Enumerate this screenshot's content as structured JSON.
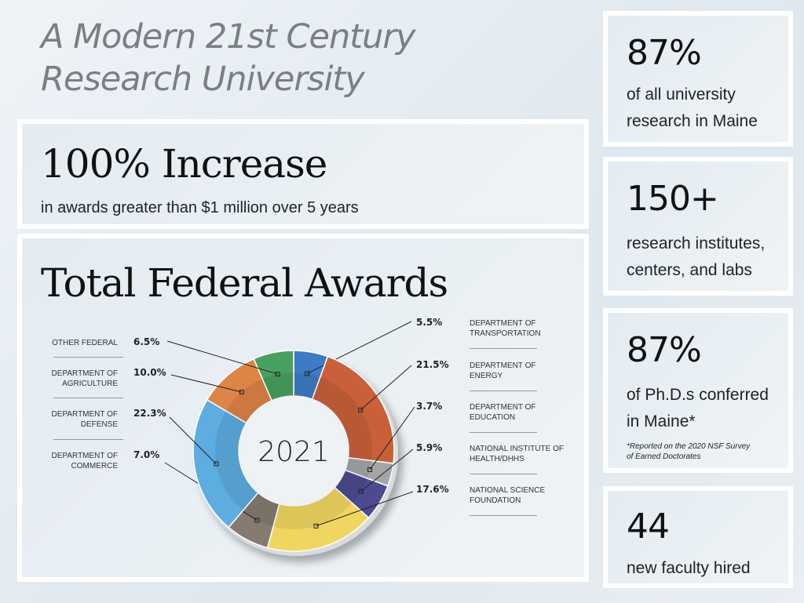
{
  "header": {
    "title_line1": "A Modern 21st Century",
    "title_line2": "Research University"
  },
  "increase": {
    "headline": "100% Increase",
    "detail": "in awards greater than $1 million over 5 years"
  },
  "stats": [
    {
      "value": "87%",
      "line1": "of all university",
      "line2": "research in Maine"
    },
    {
      "value": "150+",
      "line1": "research institutes,",
      "line2": "centers, and labs"
    },
    {
      "value": "87%",
      "line1": "of Ph.D.s conferred",
      "line2": "in Maine*",
      "footnote1": "*Reported on the 2020 NSF Survey",
      "footnote2": "of Earned Doctorates"
    },
    {
      "value": "44",
      "line1": "new faculty hired"
    }
  ],
  "chart_data": {
    "type": "pie",
    "style": "donut",
    "title": "Total Federal Awards",
    "center_label": "2021",
    "slices": [
      {
        "name": "DEPARTMENT OF TRANSPORTATION",
        "value": 5.5,
        "label": "5.5%",
        "color": "#3d7cc4"
      },
      {
        "name": "DEPARTMENT OF ENERGY",
        "value": 21.5,
        "label": "21.5%",
        "color": "#c9603a"
      },
      {
        "name": "DEPARTMENT OF EDUCATION",
        "value": 3.7,
        "label": "3.7%",
        "color": "#a3a5a7"
      },
      {
        "name": "NATIONAL INSTITUTE OF HEALTH/DHHS",
        "value": 5.9,
        "label": "5.9%",
        "color": "#4e4a8f"
      },
      {
        "name": "NATIONAL SCIENCE FOUNDATION",
        "value": 17.6,
        "label": "17.6%",
        "color": "#f0d660"
      },
      {
        "name": "DEPARTMENT OF COMMERCE",
        "value": 7.0,
        "label": "7.0%",
        "color": "#857b70"
      },
      {
        "name": "DEPARTMENT OF DEFENSE",
        "value": 22.3,
        "label": "22.3%",
        "color": "#5dade0"
      },
      {
        "name": "DEPARTMENT OF AGRICULTURE",
        "value": 10.0,
        "label": "10.0%",
        "color": "#dd8447"
      },
      {
        "name": "OTHER FEDERAL",
        "value": 6.5,
        "label": "6.5%",
        "color": "#48a060"
      }
    ]
  }
}
